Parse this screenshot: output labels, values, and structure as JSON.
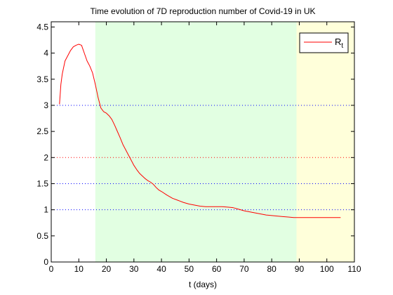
{
  "chart_data": {
    "type": "line",
    "title": "Time evolution of 7D reproduction number of Covid-19 in UK",
    "xlabel": "t (days)",
    "ylabel": "",
    "xlim": [
      0,
      110
    ],
    "ylim": [
      0,
      4.6
    ],
    "xticks": [
      0,
      10,
      20,
      30,
      40,
      50,
      60,
      70,
      80,
      90,
      100,
      110
    ],
    "yticks": [
      0,
      0.5,
      1,
      1.5,
      2,
      2.5,
      3,
      3.5,
      4,
      4.5
    ],
    "grid": false,
    "legend_position": "top-right",
    "shaded_regions": [
      {
        "x0": 16,
        "x1": 89,
        "color": "#e2ffe2"
      },
      {
        "x0": 89,
        "x1": 110,
        "color": "#ffffda"
      }
    ],
    "reference_lines": [
      {
        "y": 3,
        "color": "#0000ff",
        "style": "dotted"
      },
      {
        "y": 2,
        "color": "#ff0000",
        "style": "dotted"
      },
      {
        "y": 1.5,
        "color": "#0000ff",
        "style": "dotted"
      },
      {
        "y": 1,
        "color": "#0000ff",
        "style": "dotted"
      }
    ],
    "series": [
      {
        "name": "R_t",
        "legend_main": "R",
        "legend_sub": "t",
        "color": "#ff0000",
        "x": [
          3,
          3.5,
          4,
          5,
          6,
          7,
          8,
          9,
          10,
          11,
          12,
          13,
          14,
          15,
          16,
          17,
          18,
          19,
          20,
          21,
          22,
          23,
          24,
          25,
          26,
          27,
          28,
          29,
          30,
          31,
          32,
          33,
          34,
          35,
          36,
          37,
          38,
          39,
          40,
          42,
          44,
          46,
          48,
          50,
          52,
          54,
          56,
          58,
          60,
          62,
          64,
          66,
          68,
          70,
          72,
          74,
          76,
          78,
          80,
          82,
          84,
          86,
          88,
          89,
          90,
          95,
          100,
          105
        ],
        "y": [
          3.02,
          3.4,
          3.6,
          3.85,
          3.95,
          4.05,
          4.12,
          4.15,
          4.17,
          4.15,
          4.0,
          3.85,
          3.75,
          3.62,
          3.4,
          3.15,
          2.95,
          2.88,
          2.85,
          2.8,
          2.73,
          2.62,
          2.5,
          2.38,
          2.25,
          2.15,
          2.05,
          1.95,
          1.85,
          1.77,
          1.7,
          1.65,
          1.6,
          1.56,
          1.53,
          1.49,
          1.43,
          1.38,
          1.35,
          1.28,
          1.22,
          1.18,
          1.14,
          1.11,
          1.09,
          1.07,
          1.06,
          1.06,
          1.06,
          1.06,
          1.05,
          1.04,
          1.01,
          0.98,
          0.96,
          0.94,
          0.92,
          0.9,
          0.89,
          0.88,
          0.87,
          0.86,
          0.85,
          0.85,
          0.85,
          0.85,
          0.85,
          0.85
        ]
      }
    ]
  }
}
